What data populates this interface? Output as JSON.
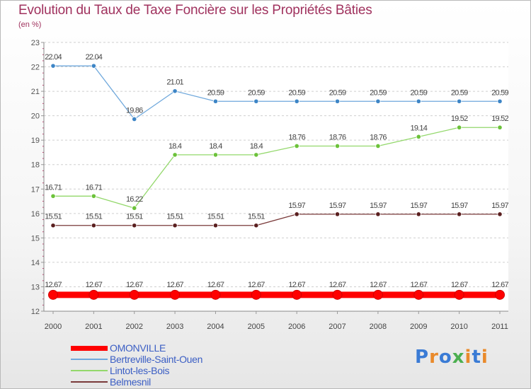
{
  "chart_data": {
    "type": "line",
    "title": "Evolution du Taux de Taxe Foncière sur les Propriétés Bâties",
    "ylabel": "(en %)",
    "xlabel": "",
    "ylim": [
      12,
      23
    ],
    "yticks": [
      "12",
      "13",
      "14",
      "15",
      "16",
      "17",
      "18",
      "19",
      "20",
      "21",
      "22",
      "23"
    ],
    "categories": [
      "2000",
      "2001",
      "2002",
      "2003",
      "2004",
      "2005",
      "2006",
      "2007",
      "2008",
      "2009",
      "2010",
      "2011"
    ],
    "grid": "horizontal-dashed",
    "legend_position": "bottom-left",
    "series": [
      {
        "name": "OMONVILLE",
        "color": "#ff0000",
        "emphasis": "thick",
        "values": [
          12.67,
          12.67,
          12.67,
          12.67,
          12.67,
          12.67,
          12.67,
          12.67,
          12.67,
          12.67,
          12.67,
          12.67
        ],
        "labels": [
          "12.67",
          "12.67",
          "12.67",
          "12.67",
          "12.67",
          "12.67",
          "12.67",
          "12.67",
          "12.67",
          "12.67",
          "12.67",
          "12.67"
        ]
      },
      {
        "name": "Bertreville-Saint-Ouen",
        "color": "#6fa8dc",
        "marker_color": "#3d85c6",
        "values": [
          22.04,
          22.04,
          19.86,
          21.01,
          20.59,
          20.59,
          20.59,
          20.59,
          20.59,
          20.59,
          20.59,
          20.59
        ],
        "labels": [
          "22.04",
          "22.04",
          "19.86",
          "21.01",
          "20.59",
          "20.59",
          "20.59",
          "20.59",
          "20.59",
          "20.59",
          "20.59",
          "20.59"
        ]
      },
      {
        "name": "Lintot-les-Bois",
        "color": "#93d86b",
        "marker_color": "#6cc23a",
        "values": [
          16.71,
          16.71,
          16.22,
          18.4,
          18.4,
          18.4,
          18.76,
          18.76,
          18.76,
          19.14,
          19.52,
          19.52
        ],
        "labels": [
          "16.71",
          "16.71",
          "16.22",
          "18.4",
          "18.4",
          "18.4",
          "18.76",
          "18.76",
          "18.76",
          "19.14",
          "19.52",
          "19.52"
        ]
      },
      {
        "name": "Belmesnil",
        "color": "#7a3a3a",
        "marker_color": "#5a1f1f",
        "values": [
          15.51,
          15.51,
          15.51,
          15.51,
          15.51,
          15.51,
          15.97,
          15.97,
          15.97,
          15.97,
          15.97,
          15.97
        ],
        "labels": [
          "15.51",
          "15.51",
          "15.51",
          "15.51",
          "15.51",
          "15.51",
          "15.97",
          "15.97",
          "15.97",
          "15.97",
          "15.97",
          "15.97"
        ]
      }
    ]
  },
  "legend": {
    "items": [
      "OMONVILLE",
      "Bertreville-Saint-Ouen",
      "Lintot-les-Bois",
      "Belmesnil"
    ],
    "text_color": "#3b5ec4"
  },
  "logo": {
    "letters": [
      "P",
      "r",
      "o",
      "x",
      "i",
      "t",
      "i"
    ],
    "colors": [
      "#3a7bd5",
      "#e98a2b",
      "#3a7bd5",
      "#4caf50",
      "#e98a2b",
      "#3a7bd5",
      "#e98a2b"
    ]
  }
}
